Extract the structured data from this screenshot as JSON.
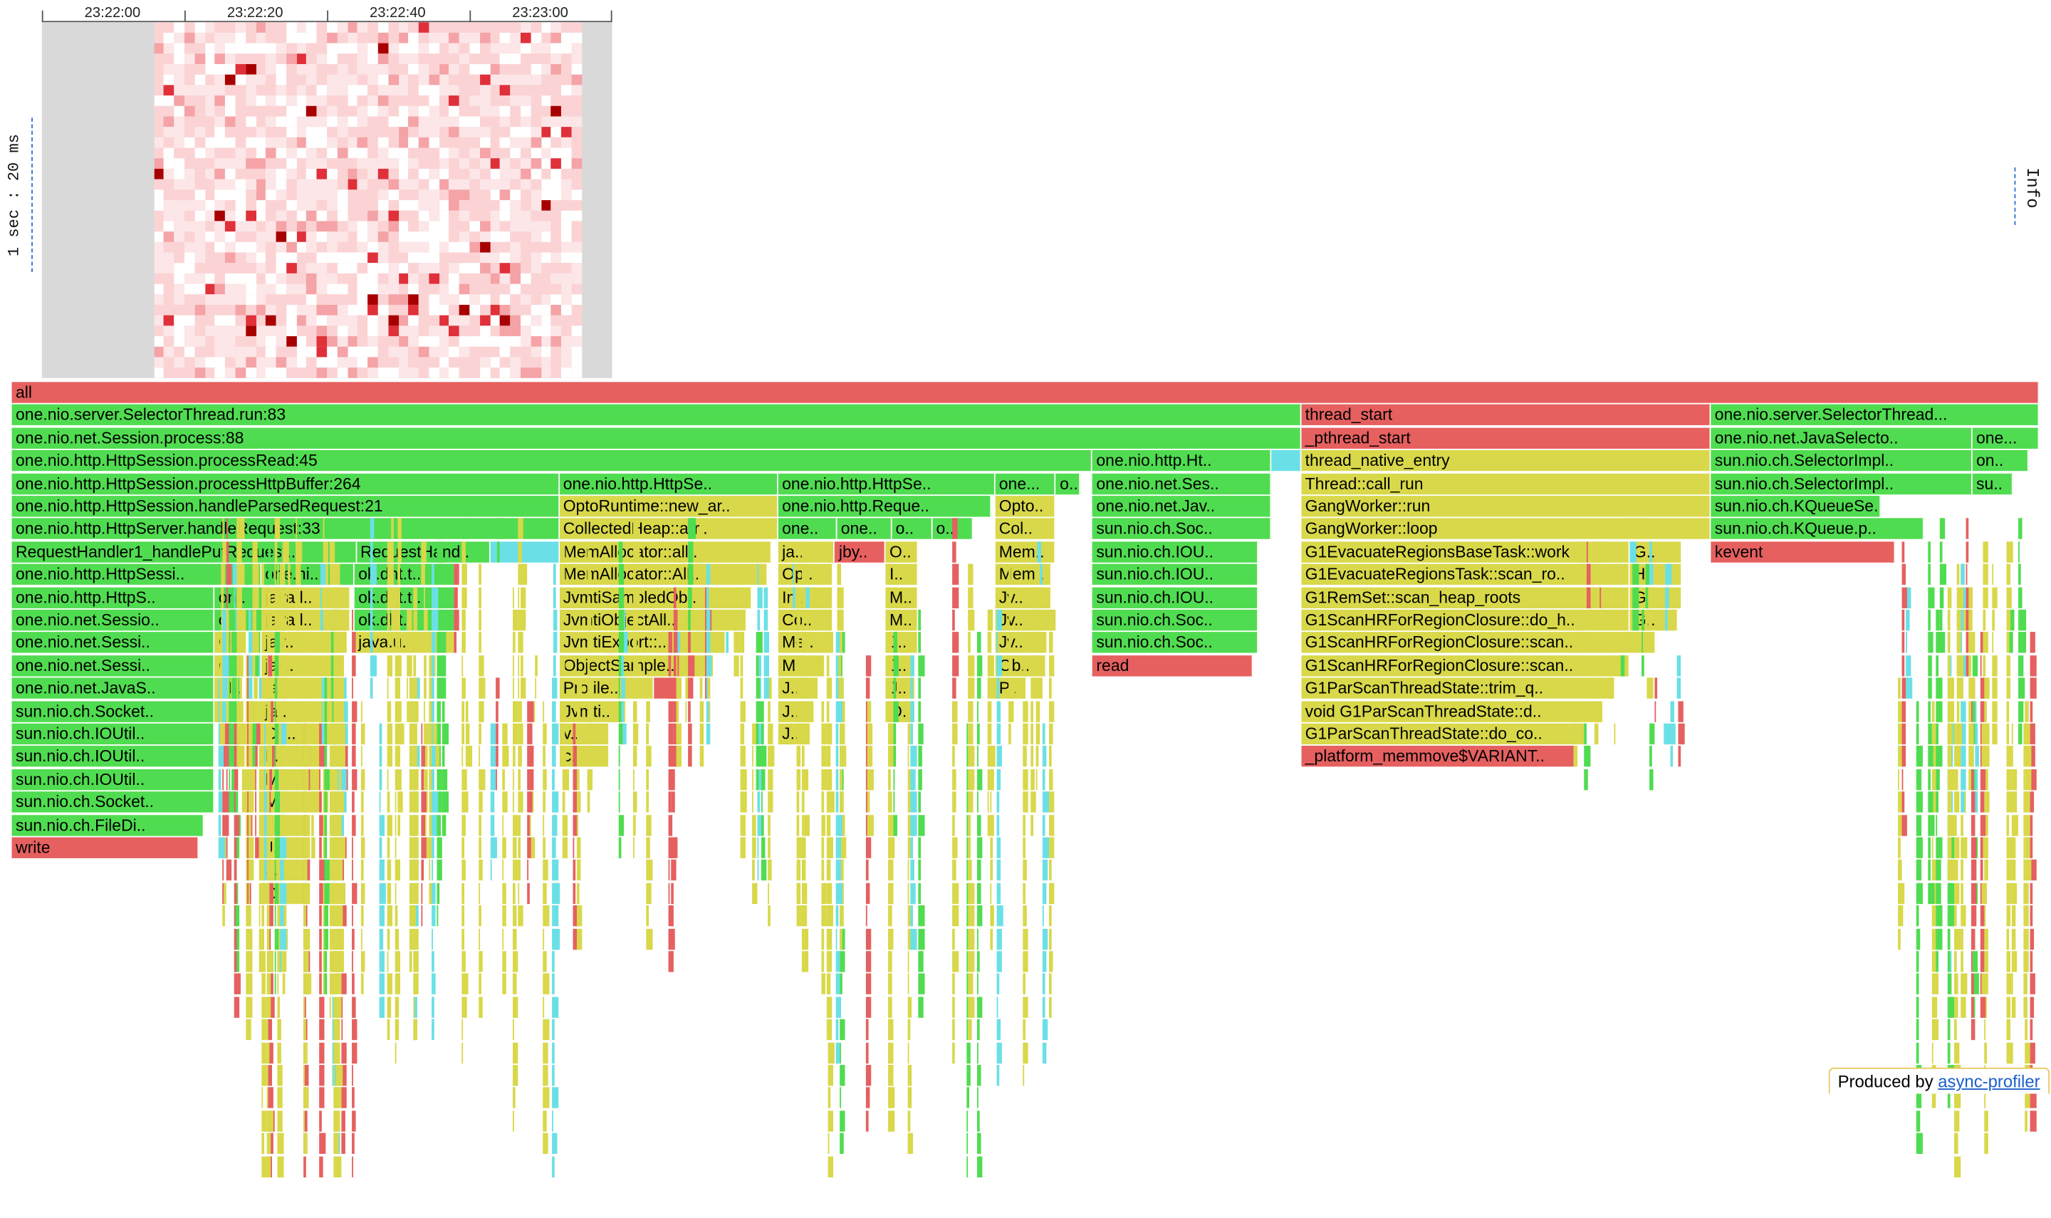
{
  "timeline": {
    "ticks": [
      "23:22:00",
      "23:22:20",
      "23:22:40",
      "23:23:00"
    ],
    "scale_label": "1 sec : 20 ms"
  },
  "info_label": "Info",
  "footer": {
    "prefix": "Produced by ",
    "link_text": "async-profiler"
  },
  "colors": {
    "java": "#50dc50",
    "native": "#e66060",
    "cpp": "#d8d84a",
    "inlined": "#6ae0e6"
  },
  "flamegraph": {
    "frames": [
      {
        "text": "all",
        "c": "native",
        "d": 0,
        "s": 0,
        "w": 100
      },
      {
        "text": "one.nio.server.SelectorThread.run:83",
        "c": "java",
        "d": 1,
        "s": 0,
        "w": 63.6
      },
      {
        "text": "thread_start",
        "c": "native",
        "d": 1,
        "s": 63.6,
        "w": 20.2
      },
      {
        "text": "one.nio.server.SelectorThread...",
        "c": "java",
        "d": 1,
        "s": 83.8,
        "w": 16.2
      },
      {
        "text": "one.nio.net.Session.process:88",
        "c": "java",
        "d": 2,
        "s": 0,
        "w": 63.6
      },
      {
        "text": "_pthread_start",
        "c": "native",
        "d": 2,
        "s": 63.6,
        "w": 20.2
      },
      {
        "text": "one.nio.net.JavaSelecto..",
        "c": "java",
        "d": 2,
        "s": 83.8,
        "w": 12.9
      },
      {
        "text": "one...",
        "c": "java",
        "d": 2,
        "s": 96.7,
        "w": 3.3
      },
      {
        "text": "one.nio.http.HttpSession.processRead:45",
        "c": "java",
        "d": 3,
        "s": 0,
        "w": 53.3
      },
      {
        "text": "one.nio.http.Ht..",
        "c": "java",
        "d": 3,
        "s": 53.3,
        "w": 8.8
      },
      {
        "text": "",
        "c": "inlined",
        "d": 3,
        "s": 62.1,
        "w": 1.5
      },
      {
        "text": "thread_native_entry",
        "c": "cpp",
        "d": 3,
        "s": 63.6,
        "w": 20.2
      },
      {
        "text": "sun.nio.ch.SelectorImpl..",
        "c": "java",
        "d": 3,
        "s": 83.8,
        "w": 12.9
      },
      {
        "text": "on..",
        "c": "java",
        "d": 3,
        "s": 96.7,
        "w": 2.8
      },
      {
        "text": "one.nio.http.HttpSession.processHttpBuffer:264",
        "c": "java",
        "d": 4,
        "s": 0,
        "w": 27
      },
      {
        "text": "one.nio.http.HttpSe..",
        "c": "java",
        "d": 4,
        "s": 27,
        "w": 10.8
      },
      {
        "text": "one.nio.http.HttpSe..",
        "c": "java",
        "d": 4,
        "s": 37.8,
        "w": 10.7
      },
      {
        "text": "one...",
        "c": "java",
        "d": 4,
        "s": 48.5,
        "w": 3
      },
      {
        "text": "o..",
        "c": "java",
        "d": 4,
        "s": 51.5,
        "w": 1.2
      },
      {
        "text": "one.nio.net.Ses..",
        "c": "java",
        "d": 4,
        "s": 53.3,
        "w": 8.8
      },
      {
        "text": "Thread::call_run",
        "c": "cpp",
        "d": 4,
        "s": 63.6,
        "w": 20.2
      },
      {
        "text": "sun.nio.ch.SelectorImpl..",
        "c": "java",
        "d": 4,
        "s": 83.8,
        "w": 12.9
      },
      {
        "text": "su..",
        "c": "java",
        "d": 4,
        "s": 96.7,
        "w": 2
      },
      {
        "text": "one.nio.http.HttpSession.handleParsedRequest:21",
        "c": "java",
        "d": 5,
        "s": 0,
        "w": 27
      },
      {
        "text": "OptoRuntime::new_ar..",
        "c": "cpp",
        "d": 5,
        "s": 27,
        "w": 10.8
      },
      {
        "text": "one.nio.http.Reque..",
        "c": "java",
        "d": 5,
        "s": 37.8,
        "w": 10.5
      },
      {
        "text": "Opto..",
        "c": "cpp",
        "d": 5,
        "s": 48.5,
        "w": 3
      },
      {
        "text": "one.nio.net.Jav..",
        "c": "java",
        "d": 5,
        "s": 53.3,
        "w": 8.8
      },
      {
        "text": "GangWorker::run",
        "c": "cpp",
        "d": 5,
        "s": 63.6,
        "w": 20.2
      },
      {
        "text": "sun.nio.ch.KQueueSe..",
        "c": "java",
        "d": 5,
        "s": 83.8,
        "w": 8.4
      },
      {
        "text": "one.nio.http.HttpServer.handleRequest:33",
        "c": "java",
        "d": 6,
        "s": 0,
        "w": 27
      },
      {
        "text": "CollectedHeap::arr..",
        "c": "cpp",
        "d": 6,
        "s": 27,
        "w": 10.8
      },
      {
        "text": "one..",
        "c": "java",
        "d": 6,
        "s": 37.8,
        "w": 2.9
      },
      {
        "text": "one..",
        "c": "java",
        "d": 6,
        "s": 40.7,
        "w": 2.7
      },
      {
        "text": "o..",
        "c": "java",
        "d": 6,
        "s": 43.4,
        "w": 2
      },
      {
        "text": "o..",
        "c": "java",
        "d": 6,
        "s": 45.4,
        "w": 2
      },
      {
        "text": "Col..",
        "c": "cpp",
        "d": 6,
        "s": 48.5,
        "w": 3
      },
      {
        "text": "sun.nio.ch.Soc..",
        "c": "java",
        "d": 6,
        "s": 53.3,
        "w": 8.8
      },
      {
        "text": "GangWorker::loop",
        "c": "cpp",
        "d": 6,
        "s": 63.6,
        "w": 20.2
      },
      {
        "text": "sun.nio.ch.KQueue.p..",
        "c": "java",
        "d": 6,
        "s": 83.8,
        "w": 10.5
      },
      {
        "text": "RequestHandler1_handlePutRequest..",
        "c": "java",
        "d": 7,
        "s": 0,
        "w": 17
      },
      {
        "text": "RequestHand..",
        "c": "java",
        "d": 7,
        "s": 17,
        "w": 6.6
      },
      {
        "text": "",
        "c": "inlined",
        "d": 7,
        "s": 23.6,
        "w": 3.4
      },
      {
        "text": "MemAllocator::all..",
        "c": "cpp",
        "d": 7,
        "s": 27,
        "w": 10.5
      },
      {
        "text": "ja..",
        "c": "cpp",
        "d": 7,
        "s": 37.8,
        "w": 2.8
      },
      {
        "text": "jby..",
        "c": "native",
        "d": 7,
        "s": 40.6,
        "w": 2.5
      },
      {
        "text": "O..",
        "c": "cpp",
        "d": 7,
        "s": 43.1,
        "w": 1.6
      },
      {
        "text": "Mem..",
        "c": "cpp",
        "d": 7,
        "s": 48.5,
        "w": 3
      },
      {
        "text": "sun.nio.ch.IOU..",
        "c": "java",
        "d": 7,
        "s": 53.3,
        "w": 8.2
      },
      {
        "text": "G1EvacuateRegionsBaseTask::work",
        "c": "cpp",
        "d": 7,
        "s": 63.6,
        "w": 16.2
      },
      {
        "text": "G..",
        "c": "cpp",
        "d": 7,
        "s": 79.8,
        "w": 2.6
      },
      {
        "text": "kevent",
        "c": "native",
        "d": 7,
        "s": 83.8,
        "w": 9.1
      },
      {
        "text": "one.nio.http.HttpSessi..",
        "c": "java",
        "d": 8,
        "s": 0,
        "w": 12.3
      },
      {
        "text": "one.ni..",
        "c": "java",
        "d": 8,
        "s": 12.3,
        "w": 4.6
      },
      {
        "text": "ok.dht.t..",
        "c": "java",
        "d": 8,
        "s": 16.9,
        "w": 5
      },
      {
        "text": "MemAllocator::All..",
        "c": "cpp",
        "d": 8,
        "s": 27,
        "w": 10.3
      },
      {
        "text": "Op..",
        "c": "cpp",
        "d": 8,
        "s": 37.8,
        "w": 2.7
      },
      {
        "text": "I..",
        "c": "cpp",
        "d": 8,
        "s": 43.1,
        "w": 1.6
      },
      {
        "text": "Mem..",
        "c": "cpp",
        "d": 8,
        "s": 48.5,
        "w": 2.8
      },
      {
        "text": "sun.nio.ch.IOU..",
        "c": "java",
        "d": 8,
        "s": 53.3,
        "w": 8.2
      },
      {
        "text": "G1EvacuateRegionsTask::scan_ro..",
        "c": "cpp",
        "d": 8,
        "s": 63.6,
        "w": 16.2
      },
      {
        "text": "H..",
        "c": "cpp",
        "d": 8,
        "s": 79.8,
        "w": 2.6
      },
      {
        "text": "one.nio.http.HttpS..",
        "c": "java",
        "d": 9,
        "s": 0,
        "w": 10
      },
      {
        "text": "on..",
        "c": "java",
        "d": 9,
        "s": 10,
        "w": 2.4
      },
      {
        "text": "java.l..",
        "c": "cpp",
        "d": 9,
        "s": 12.3,
        "w": 4.4
      },
      {
        "text": "ok.dht.t..",
        "c": "java",
        "d": 9,
        "s": 16.9,
        "w": 5
      },
      {
        "text": "JvmtiSampledOb..",
        "c": "cpp",
        "d": 9,
        "s": 27,
        "w": 9.5
      },
      {
        "text": "In..",
        "c": "cpp",
        "d": 9,
        "s": 37.8,
        "w": 2.7
      },
      {
        "text": "M..",
        "c": "cpp",
        "d": 9,
        "s": 43.1,
        "w": 1.6
      },
      {
        "text": "Jv..",
        "c": "cpp",
        "d": 9,
        "s": 48.5,
        "w": 2.8
      },
      {
        "text": "sun.nio.ch.IOU..",
        "c": "java",
        "d": 9,
        "s": 53.3,
        "w": 8.2
      },
      {
        "text": "G1RemSet::scan_heap_roots",
        "c": "cpp",
        "d": 9,
        "s": 63.6,
        "w": 16.2
      },
      {
        "text": "G..",
        "c": "cpp",
        "d": 9,
        "s": 79.8,
        "w": 2.6
      },
      {
        "text": "one.nio.net.Sessio..",
        "c": "java",
        "d": 10,
        "s": 0,
        "w": 10
      },
      {
        "text": "o..",
        "c": "java",
        "d": 10,
        "s": 10,
        "w": 2.4
      },
      {
        "text": "java.l..",
        "c": "cpp",
        "d": 10,
        "s": 12.3,
        "w": 4.4
      },
      {
        "text": "ok.dht..",
        "c": "java",
        "d": 10,
        "s": 16.9,
        "w": 5
      },
      {
        "text": "JvmtiObjectAll..",
        "c": "cpp",
        "d": 10,
        "s": 27,
        "w": 9
      },
      {
        "text": "Co..",
        "c": "cpp",
        "d": 10,
        "s": 37.8,
        "w": 2.5
      },
      {
        "text": "M..",
        "c": "cpp",
        "d": 10,
        "s": 43.1,
        "w": 1.6
      },
      {
        "text": "Jv..",
        "c": "cpp",
        "d": 10,
        "s": 48.5,
        "w": 2.8
      },
      {
        "text": "sun.nio.ch.Soc..",
        "c": "java",
        "d": 10,
        "s": 53.3,
        "w": 8.2
      },
      {
        "text": "G1ScanHRForRegionClosure::do_h..",
        "c": "cpp",
        "d": 10,
        "s": 63.6,
        "w": 16.2
      },
      {
        "text": "G..",
        "c": "cpp",
        "d": 10,
        "s": 79.8,
        "w": 2.4
      },
      {
        "text": "one.nio.net.Sessi..",
        "c": "java",
        "d": 11,
        "s": 0,
        "w": 10
      },
      {
        "text": "O..",
        "c": "cpp",
        "d": 11,
        "s": 10,
        "w": 1.6
      },
      {
        "text": "jav..",
        "c": "cpp",
        "d": 11,
        "s": 12.3,
        "w": 4.2
      },
      {
        "text": "java.u..",
        "c": "cpp",
        "d": 11,
        "s": 16.9,
        "w": 5
      },
      {
        "text": "JvmtiExport::..",
        "c": "cpp",
        "d": 11,
        "s": 27,
        "w": 8.2
      },
      {
        "text": "Me..",
        "c": "cpp",
        "d": 11,
        "s": 37.8,
        "w": 2.5
      },
      {
        "text": "J..",
        "c": "cpp",
        "d": 11,
        "s": 43.1,
        "w": 1.6
      },
      {
        "text": "Jv..",
        "c": "cpp",
        "d": 11,
        "s": 48.5,
        "w": 2.6
      },
      {
        "text": "sun.nio.ch.Soc..",
        "c": "java",
        "d": 11,
        "s": 53.3,
        "w": 8.2
      },
      {
        "text": "G1ScanHRForRegionClosure::scan..",
        "c": "cpp",
        "d": 11,
        "s": 63.6,
        "w": 17.5
      },
      {
        "text": "one.nio.net.Sessi..",
        "c": "java",
        "d": 12,
        "s": 0,
        "w": 10
      },
      {
        "text": "C..",
        "c": "cpp",
        "d": 12,
        "s": 10,
        "w": 1.4
      },
      {
        "text": "jav..",
        "c": "cpp",
        "d": 12,
        "s": 12.3,
        "w": 4
      },
      {
        "text": "ObjectSample..",
        "c": "cpp",
        "d": 12,
        "s": 27,
        "w": 7.5
      },
      {
        "text": "M..",
        "c": "cpp",
        "d": 12,
        "s": 37.8,
        "w": 2.3
      },
      {
        "text": "J..",
        "c": "cpp",
        "d": 12,
        "s": 43.1,
        "w": 1.5
      },
      {
        "text": "Ob..",
        "c": "cpp",
        "d": 12,
        "s": 48.5,
        "w": 2.5
      },
      {
        "text": "read",
        "c": "native",
        "d": 12,
        "s": 53.3,
        "w": 7.9
      },
      {
        "text": "G1ScanHRForRegionClosure::scan..",
        "c": "cpp",
        "d": 12,
        "s": 63.6,
        "w": 16.2
      },
      {
        "text": "one.nio.net.JavaS..",
        "c": "java",
        "d": 13,
        "s": 0,
        "w": 10
      },
      {
        "text": "M..",
        "c": "cpp",
        "d": 13,
        "s": 10,
        "w": 1.4
      },
      {
        "text": "ja..",
        "c": "cpp",
        "d": 13,
        "s": 12.3,
        "w": 3.7
      },
      {
        "text": "Profile..",
        "c": "cpp",
        "d": 13,
        "s": 27,
        "w": 4.7
      },
      {
        "text": "",
        "c": "native",
        "d": 13,
        "s": 31.7,
        "w": 1.2
      },
      {
        "text": "J..",
        "c": "cpp",
        "d": 13,
        "s": 37.8,
        "w": 2
      },
      {
        "text": "J..",
        "c": "cpp",
        "d": 13,
        "s": 43.1,
        "w": 1.5
      },
      {
        "text": "P..",
        "c": "cpp",
        "d": 13,
        "s": 48.5,
        "w": 1.5
      },
      {
        "text": "G1ParScanThreadState::trim_q..",
        "c": "cpp",
        "d": 13,
        "s": 63.6,
        "w": 15.4
      },
      {
        "text": "sun.nio.ch.Socket..",
        "c": "java",
        "d": 14,
        "s": 0,
        "w": 10
      },
      {
        "text": "M..",
        "c": "cpp",
        "d": 14,
        "s": 10,
        "w": 1.4
      },
      {
        "text": "ja..",
        "c": "cpp",
        "d": 14,
        "s": 12.3,
        "w": 3.7
      },
      {
        "text": "Jvmti..",
        "c": "cpp",
        "d": 14,
        "s": 27,
        "w": 3.3
      },
      {
        "text": "J..",
        "c": "cpp",
        "d": 14,
        "s": 37.8,
        "w": 1.8
      },
      {
        "text": "O..",
        "c": "cpp",
        "d": 14,
        "s": 43.1,
        "w": 1.5
      },
      {
        "text": "void G1ParScanThreadState::d..",
        "c": "cpp",
        "d": 14,
        "s": 63.6,
        "w": 14.9
      },
      {
        "text": "sun.nio.ch.IOUtil..",
        "c": "java",
        "d": 15,
        "s": 0,
        "w": 10
      },
      {
        "text": "Op..",
        "c": "cpp",
        "d": 15,
        "s": 12.3,
        "w": 3.7
      },
      {
        "text": "v..",
        "c": "cpp",
        "d": 15,
        "s": 27,
        "w": 2.5
      },
      {
        "text": "J..",
        "c": "cpp",
        "d": 15,
        "s": 37.8,
        "w": 1.6
      },
      {
        "text": "G1ParScanThreadState::do_co..",
        "c": "cpp",
        "d": 15,
        "s": 63.6,
        "w": 14
      },
      {
        "text": "sun.nio.ch.IOUtil..",
        "c": "java",
        "d": 16,
        "s": 0,
        "w": 10
      },
      {
        "text": "I..",
        "c": "cpp",
        "d": 16,
        "s": 12.3,
        "w": 3.2
      },
      {
        "text": "c..",
        "c": "cpp",
        "d": 16,
        "s": 27,
        "w": 2.5
      },
      {
        "text": "_platform_memmove$VARIANT..",
        "c": "native",
        "d": 16,
        "s": 63.6,
        "w": 13.5
      },
      {
        "text": "sun.nio.ch.IOUtil..",
        "c": "java",
        "d": 17,
        "s": 0,
        "w": 10
      },
      {
        "text": "M..",
        "c": "cpp",
        "d": 17,
        "s": 12.3,
        "w": 3
      },
      {
        "text": "sun.nio.ch.Socket..",
        "c": "java",
        "d": 18,
        "s": 0,
        "w": 10
      },
      {
        "text": "M..",
        "c": "cpp",
        "d": 18,
        "s": 12.3,
        "w": 3
      },
      {
        "text": "sun.nio.ch.FileDi..",
        "c": "java",
        "d": 19,
        "s": 0,
        "w": 9.5
      },
      {
        "text": "J..",
        "c": "cpp",
        "d": 19,
        "s": 12.3,
        "w": 2.5
      },
      {
        "text": "write",
        "c": "native",
        "d": 20,
        "s": 0,
        "w": 9.2
      },
      {
        "text": "J..",
        "c": "cpp",
        "d": 20,
        "s": 12.3,
        "w": 2.4
      },
      {
        "text": "J..",
        "c": "cpp",
        "d": 21,
        "s": 12.3,
        "w": 2.2
      },
      {
        "text": "O..",
        "c": "cpp",
        "d": 22,
        "s": 12.3,
        "w": 2.2
      }
    ]
  }
}
